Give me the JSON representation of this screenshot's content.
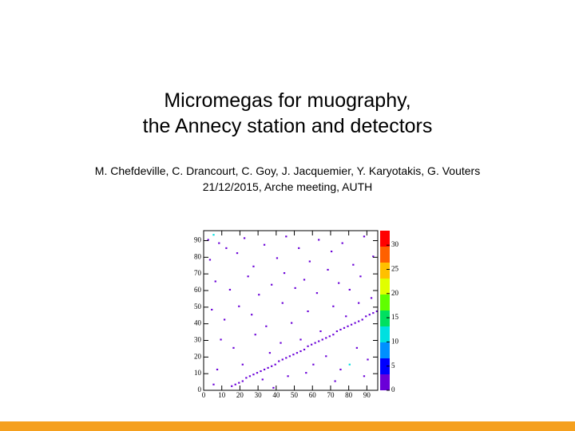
{
  "slide": {
    "title_lines": [
      "Micromegas for muography,",
      "the Annecy station and detectors"
    ],
    "authors": "M. Chefdeville, C. Drancourt, C. Goy, J. Jacquemier, Y. Karyotakis, G. Vouters",
    "meeting": "21/12/2015, Arche meeting, AUTH"
  },
  "chart_data": {
    "type": "heatmap",
    "xlim": [
      0,
      96
    ],
    "ylim": [
      0,
      96
    ],
    "zlim": [
      0,
      33
    ],
    "xticks": [
      0,
      10,
      20,
      30,
      40,
      50,
      60,
      70,
      80,
      90
    ],
    "yticks": [
      0,
      10,
      20,
      30,
      40,
      50,
      60,
      70,
      80,
      90
    ],
    "zticks": [
      0,
      5,
      10,
      15,
      20,
      25,
      30
    ],
    "palette": [
      "#6a00d8",
      "#0000ff",
      "#0090ff",
      "#00e0e0",
      "#00e060",
      "#60ff00",
      "#e0ff00",
      "#ffc000",
      "#ff6000",
      "#ff0000"
    ],
    "x": [
      15,
      17,
      19,
      21,
      23,
      25,
      27,
      29,
      31,
      33,
      35,
      37,
      39,
      41,
      43,
      45,
      47,
      49,
      51,
      53,
      55,
      57,
      59,
      61,
      63,
      65,
      67,
      69,
      71,
      73,
      75,
      77,
      79,
      81,
      83,
      85,
      87,
      89,
      91,
      93,
      95,
      2,
      5,
      8,
      12,
      3,
      18,
      22,
      27,
      33,
      40,
      45,
      52,
      58,
      63,
      70,
      76,
      82,
      88,
      93,
      6,
      14,
      24,
      30,
      37,
      44,
      50,
      55,
      62,
      68,
      74,
      80,
      86,
      92,
      4,
      11,
      19,
      26,
      34,
      43,
      48,
      57,
      64,
      71,
      78,
      85,
      9,
      16,
      28,
      36,
      42,
      53,
      60,
      67,
      75,
      84,
      90,
      7,
      21,
      32,
      46,
      56,
      72,
      88,
      5,
      38,
      80
    ],
    "y": [
      2,
      3,
      4,
      5,
      7,
      8,
      9,
      10,
      11,
      12,
      13,
      14,
      15,
      17,
      18,
      19,
      20,
      21,
      22,
      23,
      24,
      26,
      27,
      28,
      29,
      30,
      31,
      32,
      33,
      35,
      36,
      37,
      38,
      39,
      40,
      41,
      42,
      44,
      45,
      46,
      47,
      90,
      93,
      88,
      85,
      78,
      82,
      91,
      74,
      87,
      79,
      92,
      85,
      77,
      90,
      83,
      88,
      75,
      92,
      80,
      65,
      60,
      68,
      57,
      63,
      70,
      61,
      66,
      58,
      72,
      64,
      60,
      68,
      55,
      48,
      42,
      50,
      45,
      38,
      52,
      40,
      47,
      35,
      50,
      44,
      52,
      30,
      25,
      33,
      22,
      28,
      30,
      15,
      20,
      12,
      25,
      18,
      12,
      15,
      6,
      8,
      10,
      5,
      8,
      3,
      1,
      15
    ],
    "values": [
      1,
      1,
      2,
      1,
      1,
      1,
      2,
      1,
      1,
      1,
      1,
      2,
      1,
      1,
      1,
      1,
      1,
      2,
      1,
      1,
      1,
      1,
      1,
      2,
      1,
      1,
      1,
      1,
      1,
      1,
      2,
      1,
      1,
      1,
      1,
      1,
      1,
      1,
      1,
      1,
      1,
      1,
      12,
      1,
      1,
      2,
      1,
      1,
      1,
      1,
      1,
      1,
      1,
      1,
      2,
      1,
      1,
      1,
      1,
      1,
      1,
      1,
      1,
      2,
      1,
      1,
      1,
      1,
      1,
      1,
      1,
      1,
      1,
      1,
      1,
      1,
      2,
      1,
      1,
      1,
      1,
      1,
      1,
      1,
      1,
      1,
      1,
      1,
      2,
      1,
      1,
      1,
      1,
      1,
      1,
      1,
      1,
      1,
      1,
      1,
      1,
      1,
      1,
      1,
      1,
      1,
      10
    ]
  }
}
